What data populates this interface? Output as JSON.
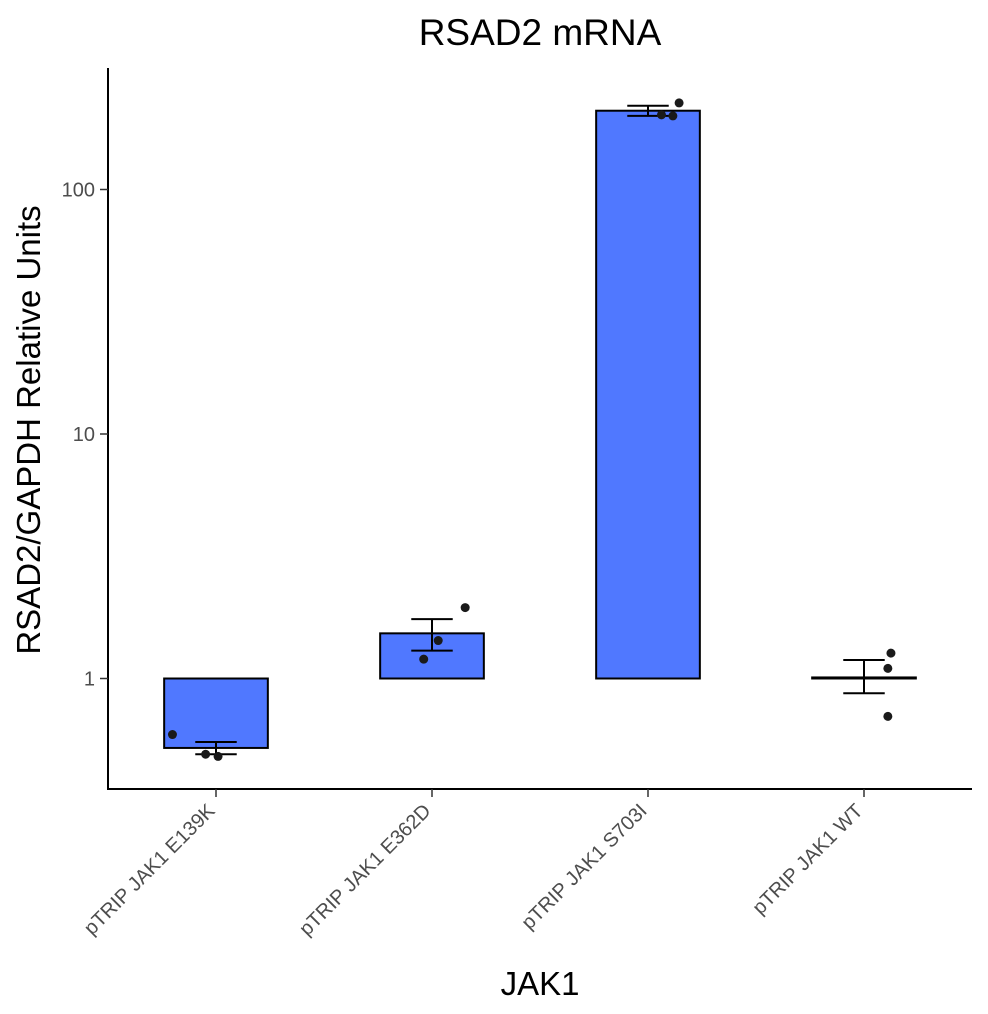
{
  "chart_data": {
    "type": "bar",
    "title": "RSAD2 mRNA",
    "xlabel": "JAK1",
    "ylabel": "RSAD2/GAPDH Relative Units",
    "y_scale": "log10",
    "ylim": [
      0.4,
      300
    ],
    "baseline": 1,
    "yticks": [
      1,
      10,
      100
    ],
    "ytick_labels": [
      "1",
      "10",
      "100"
    ],
    "categories": [
      "pTRIP JAK1 E139K",
      "pTRIP JAK1 E362D",
      "pTRIP JAK1 S703I",
      "pTRIP JAK1 WT"
    ],
    "values": [
      0.52,
      1.53,
      210,
      1.01
    ],
    "error_low": [
      0.49,
      1.3,
      200,
      0.87
    ],
    "error_high": [
      0.55,
      1.75,
      220,
      1.19
    ],
    "points": [
      [
        0.59,
        0.49,
        0.48
      ],
      [
        1.2,
        1.43,
        1.95
      ],
      [
        202,
        200,
        226
      ],
      [
        0.7,
        1.1,
        1.27
      ]
    ],
    "bar_color": "#5078FF",
    "grid": false,
    "legend": "none"
  }
}
